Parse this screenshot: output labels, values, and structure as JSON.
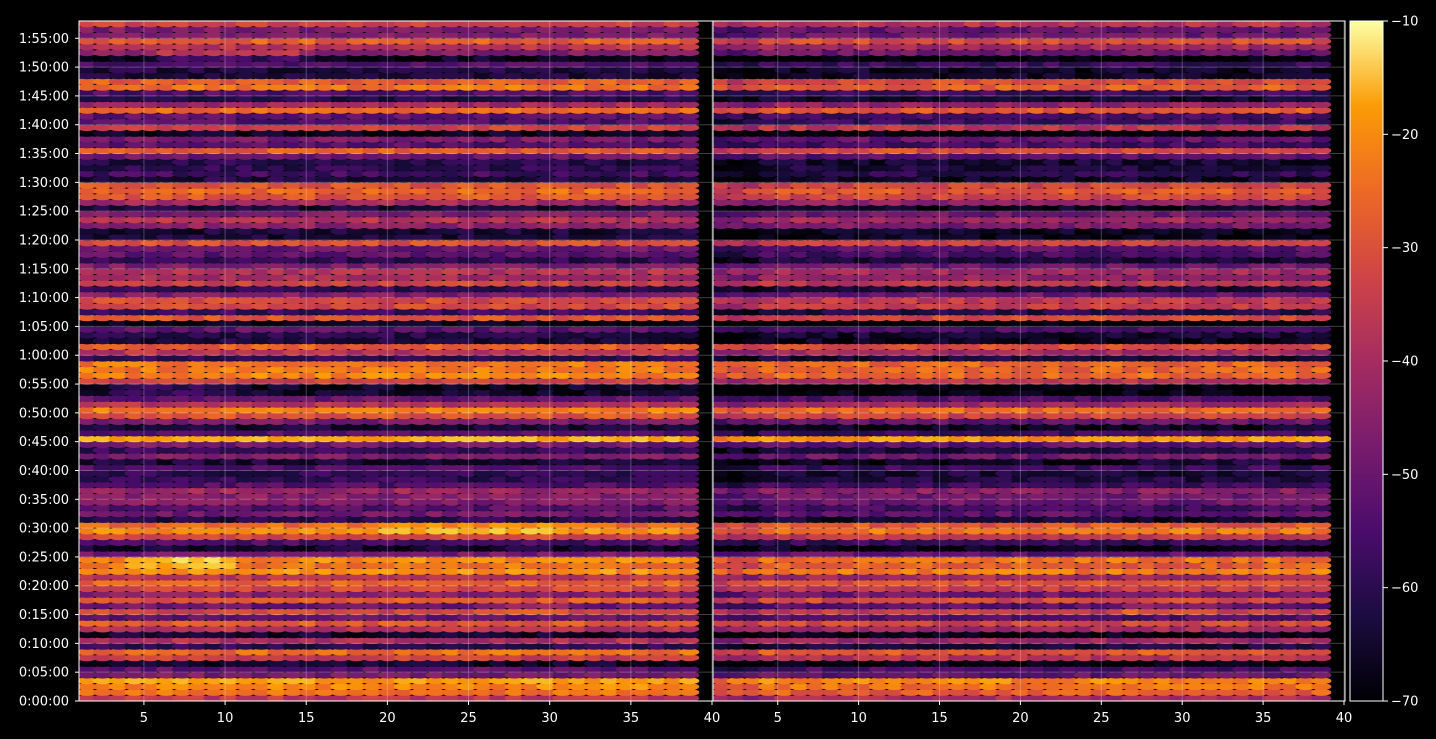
{
  "chart_data": {
    "type": "heatmap",
    "title": "",
    "xlabel": "",
    "ylabel": "",
    "colormap": "inferno",
    "background": "#000000",
    "grid": true,
    "panels": [
      {
        "x_ticks": [
          5,
          10,
          15,
          20,
          25,
          30,
          35,
          40
        ],
        "xlim": [
          1,
          40
        ]
      },
      {
        "x_ticks": [
          5,
          10,
          15,
          20,
          25,
          30,
          35,
          40
        ],
        "xlim": [
          1,
          40
        ]
      }
    ],
    "y_ticks": [
      "0:00:00",
      "0:05:00",
      "0:10:00",
      "0:15:00",
      "0:20:00",
      "0:25:00",
      "0:30:00",
      "0:35:00",
      "0:40:00",
      "0:45:00",
      "0:50:00",
      "0:55:00",
      "1:00:00",
      "1:05:00",
      "1:10:00",
      "1:15:00",
      "1:20:00",
      "1:25:00",
      "1:30:00",
      "1:35:00",
      "1:40:00",
      "1:45:00",
      "1:50:00",
      "1:55:00"
    ],
    "ylim_seconds": [
      0,
      7080
    ],
    "colorbar": {
      "ticks": [
        -70,
        -60,
        -50,
        -40,
        -30,
        -20,
        -10
      ],
      "tick_labels": [
        "−70",
        "−60",
        "−50",
        "−40",
        "−30",
        "−20",
        "−10"
      ],
      "range": [
        -70,
        -10
      ]
    },
    "n_channels": 39,
    "row_step_seconds": 60,
    "row_levels_db": [
      -40,
      -29,
      -26,
      -23,
      -50,
      -54,
      -66,
      -38,
      -30,
      -61,
      -42,
      -66,
      -41,
      -33,
      -53,
      -36,
      -52,
      -33,
      -48,
      -36,
      -31,
      -41,
      -25,
      -29,
      -26,
      -51,
      -65,
      -57,
      -36,
      -25,
      -30,
      -62,
      -51,
      -55,
      -49,
      -48,
      -45,
      -56,
      -60,
      -61,
      -56,
      -64,
      -49,
      -60,
      -51,
      -21,
      -56,
      -64,
      -50,
      -34,
      -27,
      -41,
      -53,
      -66,
      -67,
      -38,
      -27,
      -28,
      -28,
      -61,
      -41,
      -32,
      -64,
      -62,
      -54,
      -68,
      -33,
      -59,
      -36,
      -36,
      -49,
      -61,
      -37,
      -44,
      -41,
      -49,
      -61,
      -54,
      -52,
      -35,
      -64,
      -64,
      -47,
      -41,
      -49,
      -64,
      -44,
      -33,
      -30,
      -34,
      -63,
      -58,
      -61,
      -62,
      -52,
      -32,
      -55,
      -50,
      -67,
      -37,
      -56,
      -54,
      -30,
      -44,
      -62,
      -56,
      -29,
      -32,
      -63,
      -63,
      -56,
      -67,
      -49,
      -41,
      -32,
      -49,
      -50,
      -38,
      -56,
      -61
    ],
    "panel_offsets_db": [
      0,
      -3
    ],
    "hotspots": [
      {
        "panel": 0,
        "time_seconds": 6720,
        "channels": [
          6,
          14
        ],
        "delta_db": 8
      },
      {
        "panel": 0,
        "time_seconds": 3240,
        "channels": [
          3,
          10
        ],
        "delta_db": 8
      },
      {
        "panel": 0,
        "time_seconds": 1440,
        "channels": [
          4,
          10
        ],
        "delta_db": 9
      },
      {
        "panel": 0,
        "time_seconds": 1800,
        "channels": [
          20,
          30
        ],
        "delta_db": 5
      },
      {
        "panel": 0,
        "time_seconds": 960,
        "channels": [
          26,
          31
        ],
        "delta_db": 6
      },
      {
        "panel": 1,
        "time_seconds": 960,
        "channels": [
          27,
          32
        ],
        "delta_db": 6
      },
      {
        "panel": 1,
        "time_seconds": 2520,
        "channels": [
          28,
          36
        ],
        "delta_db": 4
      }
    ]
  }
}
